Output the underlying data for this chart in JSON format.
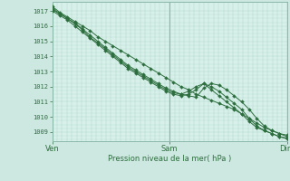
{
  "bg_color": "#cce8e0",
  "plot_bg_color": "#d8f0ea",
  "line_color": "#2d6e3e",
  "grid_major_color": "#8ab8a8",
  "grid_minor_color": "#a8d4c8",
  "ylabel_values": [
    1009,
    1010,
    1011,
    1012,
    1013,
    1014,
    1015,
    1016,
    1017
  ],
  "ylim": [
    1008.4,
    1017.6
  ],
  "xlabel": "Pression niveau de la mer( hPa )",
  "xtick_labels": [
    "Ven",
    "Sam",
    "Dim"
  ],
  "xtick_positions": [
    0.0,
    0.5,
    1.0
  ],
  "series": [
    [
      1017.3,
      1016.9,
      1016.6,
      1016.3,
      1016.0,
      1015.7,
      1015.3,
      1015.0,
      1014.7,
      1014.4,
      1014.1,
      1013.8,
      1013.5,
      1013.2,
      1012.9,
      1012.6,
      1012.3,
      1012.0,
      1011.8,
      1011.5,
      1011.3,
      1011.1,
      1010.9,
      1010.7,
      1010.5,
      1010.2,
      1009.9,
      1009.6,
      1009.3,
      1009.1,
      1008.9,
      1008.8
    ],
    [
      1017.1,
      1016.8,
      1016.5,
      1016.2,
      1015.8,
      1015.4,
      1015.0,
      1014.6,
      1014.2,
      1013.8,
      1013.4,
      1013.1,
      1012.8,
      1012.5,
      1012.2,
      1011.9,
      1011.7,
      1011.5,
      1011.4,
      1011.3,
      1011.9,
      1012.2,
      1012.1,
      1011.8,
      1011.4,
      1011.0,
      1010.5,
      1009.9,
      1009.4,
      1009.1,
      1008.9,
      1008.7
    ],
    [
      1017.0,
      1016.7,
      1016.4,
      1016.0,
      1015.6,
      1015.2,
      1014.8,
      1014.4,
      1014.0,
      1013.6,
      1013.2,
      1012.9,
      1012.6,
      1012.3,
      1012.0,
      1011.7,
      1011.5,
      1011.4,
      1011.5,
      1011.8,
      1012.2,
      1012.0,
      1011.7,
      1011.3,
      1010.9,
      1010.5,
      1009.9,
      1009.4,
      1009.1,
      1008.9,
      1008.7,
      1008.6
    ],
    [
      1017.15,
      1016.85,
      1016.5,
      1016.15,
      1015.75,
      1015.25,
      1014.9,
      1014.5,
      1014.1,
      1013.7,
      1013.3,
      1013.0,
      1012.7,
      1012.4,
      1012.1,
      1011.8,
      1011.6,
      1011.5,
      1011.7,
      1012.0,
      1012.2,
      1011.8,
      1011.4,
      1011.0,
      1010.6,
      1010.2,
      1009.7,
      1009.3,
      1009.1,
      1008.9,
      1008.7,
      1008.55
    ]
  ],
  "n_points": 32,
  "marker_size": 2.0,
  "line_width": 0.7,
  "n_minor_vert": 48
}
